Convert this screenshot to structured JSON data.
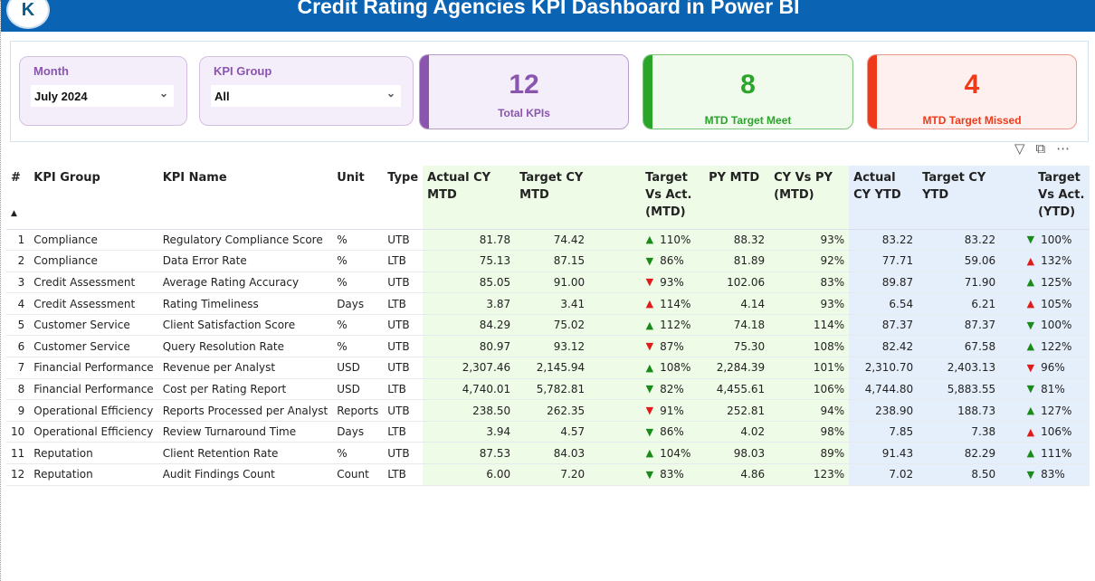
{
  "header": {
    "title": "Credit Rating Agencies KPI Dashboard in Power BI",
    "logo_text": "K"
  },
  "slicers": {
    "month": {
      "label": "Month",
      "value": "July 2024"
    },
    "kpi_group": {
      "label": "KPI Group",
      "value": "All"
    }
  },
  "cards": {
    "total": {
      "value": "12",
      "label": "Total KPIs",
      "color": "#8a55ae"
    },
    "met": {
      "value": "8",
      "label": "MTD Target Meet",
      "color": "#2aa52a"
    },
    "missed": {
      "value": "4",
      "label": "MTD Target Missed",
      "color": "#ee3a1a"
    }
  },
  "table": {
    "headers": [
      "#",
      "KPI Group",
      "KPI Name",
      "Unit",
      "Type",
      "Actual CY MTD",
      "Target CY MTD",
      "Target Vs Act. (MTD)",
      "PY MTD",
      "CY Vs PY (MTD)",
      "Actual CY YTD",
      "Target CY YTD",
      "Target Vs Act. (YTD)"
    ],
    "rows": [
      [
        "1",
        "Compliance",
        "Regulatory Compliance Score",
        "%",
        "UTB",
        "81.78",
        "74.42",
        "up-green",
        "110%",
        "88.32",
        "93%",
        "83.22",
        "83.22",
        "down-green",
        "100%"
      ],
      [
        "2",
        "Compliance",
        "Data Error Rate",
        "%",
        "LTB",
        "75.13",
        "87.15",
        "down-green",
        "86%",
        "81.89",
        "92%",
        "77.71",
        "59.06",
        "up-red",
        "132%"
      ],
      [
        "3",
        "Credit Assessment",
        "Average Rating Accuracy",
        "%",
        "UTB",
        "85.05",
        "91.00",
        "down-red",
        "93%",
        "102.06",
        "83%",
        "89.87",
        "71.90",
        "up-green",
        "125%"
      ],
      [
        "4",
        "Credit Assessment",
        "Rating Timeliness",
        "Days",
        "LTB",
        "3.87",
        "3.41",
        "up-red",
        "114%",
        "4.14",
        "93%",
        "6.54",
        "6.21",
        "up-red",
        "105%"
      ],
      [
        "5",
        "Customer Service",
        "Client Satisfaction Score",
        "%",
        "UTB",
        "84.29",
        "75.02",
        "up-green",
        "112%",
        "74.18",
        "114%",
        "87.37",
        "87.37",
        "down-green",
        "100%"
      ],
      [
        "6",
        "Customer Service",
        "Query Resolution Rate",
        "%",
        "UTB",
        "80.97",
        "93.12",
        "down-red",
        "87%",
        "75.30",
        "108%",
        "82.42",
        "67.58",
        "up-green",
        "122%"
      ],
      [
        "7",
        "Financial Performance",
        "Revenue per Analyst",
        "USD",
        "UTB",
        "2,307.46",
        "2,145.94",
        "up-green",
        "108%",
        "2,284.39",
        "101%",
        "2,310.70",
        "2,403.13",
        "down-red",
        "96%"
      ],
      [
        "8",
        "Financial Performance",
        "Cost per Rating Report",
        "USD",
        "LTB",
        "4,740.01",
        "5,782.81",
        "down-green",
        "82%",
        "4,455.61",
        "106%",
        "4,744.80",
        "5,883.55",
        "down-green",
        "81%"
      ],
      [
        "9",
        "Operational Efficiency",
        "Reports Processed per Analyst",
        "Reports",
        "UTB",
        "238.50",
        "262.35",
        "down-red",
        "91%",
        "252.81",
        "94%",
        "238.90",
        "188.73",
        "up-green",
        "127%"
      ],
      [
        "10",
        "Operational Efficiency",
        "Review Turnaround Time",
        "Days",
        "LTB",
        "3.94",
        "4.57",
        "down-green",
        "86%",
        "4.02",
        "98%",
        "7.85",
        "7.38",
        "up-red",
        "106%"
      ],
      [
        "11",
        "Reputation",
        "Client Retention Rate",
        "%",
        "UTB",
        "87.53",
        "84.03",
        "up-green",
        "104%",
        "98.03",
        "89%",
        "91.43",
        "82.29",
        "up-green",
        "111%"
      ],
      [
        "12",
        "Reputation",
        "Audit Findings Count",
        "Count",
        "LTB",
        "6.00",
        "7.20",
        "down-green",
        "83%",
        "4.86",
        "123%",
        "7.02",
        "8.50",
        "down-green",
        "83%"
      ]
    ]
  }
}
